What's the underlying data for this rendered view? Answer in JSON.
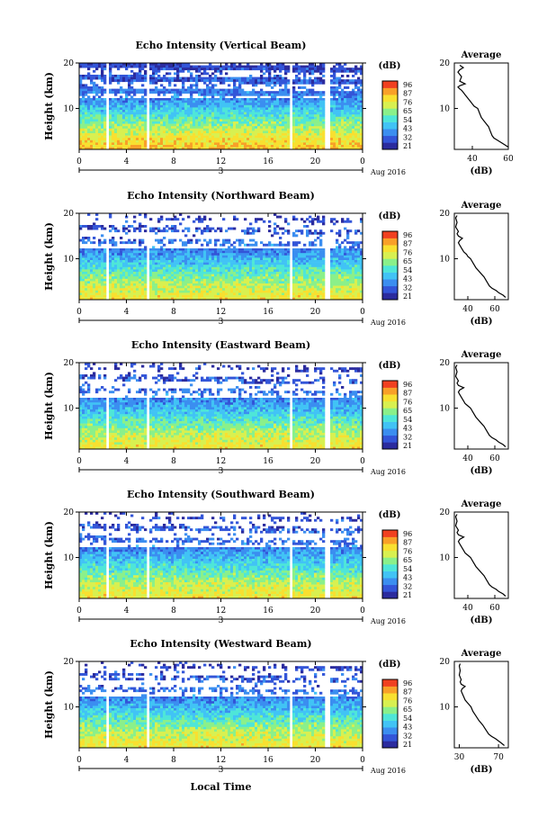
{
  "x_axis_label": "Local Time",
  "date_label": "Aug 2016",
  "date_marker": "3",
  "cbar_title": "(dB)",
  "avg_title": "Average",
  "avg_xlabel": "(dB)",
  "height_label": "Height (km)",
  "colors": [
    "#2b2b9e",
    "#3355d8",
    "#3b8ef0",
    "#41c3f5",
    "#4ee6d8",
    "#8af08a",
    "#d8f050",
    "#f8e030",
    "#f8a028",
    "#f04020"
  ],
  "chart_data": [
    {
      "type": "heatmap",
      "title": "Echo Intensity (Vertical Beam)",
      "xlabel": "",
      "ylabel": "Height (km)",
      "xlim": [
        0,
        24
      ],
      "ylim": [
        1,
        20
      ],
      "x_ticks": [
        "0",
        "4",
        "8",
        "12",
        "16",
        "20",
        "0"
      ],
      "y_ticks": [
        "20",
        "10"
      ],
      "colorbar_ticks": [
        "96",
        "87",
        "76",
        "65",
        "54",
        "43",
        "32",
        "21"
      ],
      "data_gaps_hours": [
        [
          2.1,
          2.5
        ],
        [
          5.6,
          5.9
        ],
        [
          17.6,
          17.9
        ],
        [
          20.8,
          21.1
        ]
      ],
      "average_profile": {
        "xlim": [
          30,
          60
        ],
        "x_ticks": [
          "40",
          "60"
        ],
        "y_ticks": [
          "20",
          "10"
        ],
        "db": [
          60,
          58,
          56,
          54,
          52,
          51,
          50,
          49,
          47,
          45,
          44,
          43,
          41,
          40,
          39,
          38,
          37,
          36,
          35,
          34,
          33,
          32,
          33,
          36,
          33,
          34,
          32,
          33,
          35,
          33
        ],
        "height": [
          1.5,
          2,
          2.5,
          3,
          3.5,
          4,
          5,
          6,
          7,
          8,
          9,
          10,
          10.5,
          11,
          11.5,
          12,
          12.5,
          13,
          13.5,
          14,
          14.3,
          14.7,
          15,
          15.4,
          16,
          17,
          18,
          18.5,
          19,
          19.5
        ]
      }
    },
    {
      "type": "heatmap",
      "title": "Echo Intensity (Northward Beam)",
      "xlabel": "",
      "ylabel": "Height (km)",
      "xlim": [
        0,
        24
      ],
      "ylim": [
        1,
        20
      ],
      "x_ticks": [
        "0",
        "4",
        "8",
        "12",
        "16",
        "20",
        "0"
      ],
      "y_ticks": [
        "20",
        "10"
      ],
      "colorbar_ticks": [
        "96",
        "87",
        "76",
        "65",
        "54",
        "43",
        "32",
        "21"
      ],
      "data_gaps_hours": [
        [
          2.1,
          2.5
        ],
        [
          5.6,
          5.9
        ],
        [
          17.6,
          17.9
        ],
        [
          20.8,
          21.1
        ]
      ],
      "average_profile": {
        "xlim": [
          30,
          70
        ],
        "x_ticks": [
          "40",
          "60"
        ],
        "y_ticks": [
          "20",
          "10"
        ],
        "db": [
          68,
          66,
          63,
          61,
          58,
          56,
          54,
          52,
          49,
          46,
          44,
          42,
          40,
          39,
          37,
          36,
          35,
          34,
          33,
          34,
          36,
          33,
          32,
          33,
          31,
          32,
          31,
          32
        ],
        "height": [
          1.5,
          2,
          2.5,
          3,
          3.5,
          4,
          5,
          6,
          7,
          8,
          9,
          10,
          10.5,
          11,
          11.5,
          12,
          12.5,
          13,
          13.5,
          14,
          14.5,
          15,
          15.5,
          16,
          17,
          18,
          19,
          19.5
        ]
      }
    },
    {
      "type": "heatmap",
      "title": "Echo Intensity (Eastward Beam)",
      "xlabel": "",
      "ylabel": "Height (km)",
      "xlim": [
        0,
        24
      ],
      "ylim": [
        1,
        20
      ],
      "x_ticks": [
        "0",
        "4",
        "8",
        "12",
        "16",
        "20",
        "0"
      ],
      "y_ticks": [
        "20",
        "10"
      ],
      "colorbar_ticks": [
        "96",
        "87",
        "76",
        "65",
        "54",
        "43",
        "32",
        "21"
      ],
      "data_gaps_hours": [
        [
          2.1,
          2.5
        ],
        [
          5.6,
          5.9
        ],
        [
          17.6,
          17.9
        ],
        [
          20.8,
          21.1
        ]
      ],
      "average_profile": {
        "xlim": [
          30,
          70
        ],
        "x_ticks": [
          "40",
          "60"
        ],
        "y_ticks": [
          "20",
          "10"
        ],
        "db": [
          68,
          66,
          63,
          61,
          58,
          56,
          54,
          52,
          49,
          46,
          44,
          42,
          40,
          38,
          37,
          36,
          35,
          34,
          33,
          34,
          37,
          33,
          32,
          33,
          31,
          32,
          31,
          32
        ],
        "height": [
          1.5,
          2,
          2.5,
          3,
          3.5,
          4,
          5,
          6,
          7,
          8,
          9,
          10,
          10.5,
          11,
          11.5,
          12,
          12.5,
          13,
          13.5,
          14,
          14.5,
          15,
          15.5,
          16,
          17,
          18,
          19,
          19.5
        ]
      }
    },
    {
      "type": "heatmap",
      "title": "Echo Intensity (Southward Beam)",
      "xlabel": "",
      "ylabel": "Height (km)",
      "xlim": [
        0,
        24
      ],
      "ylim": [
        1,
        20
      ],
      "x_ticks": [
        "0",
        "4",
        "8",
        "12",
        "16",
        "20",
        "0"
      ],
      "y_ticks": [
        "20",
        "10"
      ],
      "colorbar_ticks": [
        "96",
        "87",
        "76",
        "65",
        "54",
        "43",
        "32",
        "21"
      ],
      "data_gaps_hours": [
        [
          2.1,
          2.5
        ],
        [
          5.6,
          5.9
        ],
        [
          17.6,
          17.9
        ],
        [
          20.8,
          21.1
        ]
      ],
      "average_profile": {
        "xlim": [
          30,
          70
        ],
        "x_ticks": [
          "40",
          "60"
        ],
        "y_ticks": [
          "20",
          "10"
        ],
        "db": [
          68,
          66,
          63,
          61,
          58,
          56,
          54,
          52,
          49,
          46,
          44,
          42,
          40,
          38,
          37,
          36,
          35,
          34,
          33,
          34,
          37,
          33,
          32,
          33,
          31,
          32,
          31,
          32
        ],
        "height": [
          1.5,
          2,
          2.5,
          3,
          3.5,
          4,
          5,
          6,
          7,
          8,
          9,
          10,
          10.5,
          11,
          11.5,
          12,
          12.5,
          13,
          13.5,
          14,
          14.5,
          15,
          15.5,
          16,
          17,
          18,
          19,
          19.5
        ]
      }
    },
    {
      "type": "heatmap",
      "title": "Echo Intensity (Westward Beam)",
      "xlabel": "Local Time",
      "ylabel": "Height (km)",
      "xlim": [
        0,
        24
      ],
      "ylim": [
        1,
        20
      ],
      "x_ticks": [
        "0",
        "4",
        "8",
        "12",
        "16",
        "20",
        "0"
      ],
      "y_ticks": [
        "20",
        "10"
      ],
      "colorbar_ticks": [
        "96",
        "87",
        "76",
        "65",
        "54",
        "43",
        "32",
        "21"
      ],
      "data_gaps_hours": [
        [
          2.1,
          2.5
        ],
        [
          5.6,
          5.9
        ],
        [
          17.6,
          17.9
        ],
        [
          20.8,
          21.1
        ]
      ],
      "average_profile": {
        "xlim": [
          25,
          80
        ],
        "x_ticks": [
          "30",
          "70"
        ],
        "y_ticks": [
          "20",
          "10"
        ],
        "db": [
          76,
          73,
          70,
          67,
          63,
          60,
          57,
          54,
          50,
          47,
          44,
          42,
          40,
          38,
          36,
          35,
          34,
          33,
          32,
          33,
          36,
          32,
          31,
          32,
          30,
          31,
          30,
          31
        ],
        "height": [
          1.5,
          2,
          2.5,
          3,
          3.5,
          4,
          5,
          6,
          7,
          8,
          9,
          10,
          10.5,
          11,
          11.5,
          12,
          12.5,
          13,
          13.5,
          14,
          14.5,
          15,
          15.5,
          16,
          17,
          18,
          19,
          19.5
        ]
      }
    }
  ]
}
